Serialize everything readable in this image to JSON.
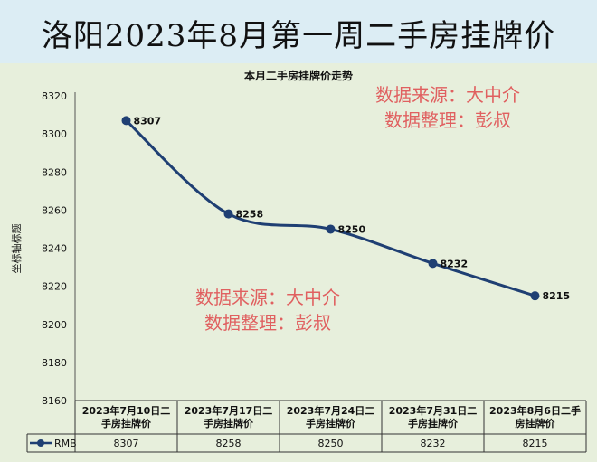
{
  "banner": {
    "title": "洛阳2023年8月第一周二手房挂牌价"
  },
  "chart_data": {
    "type": "line",
    "title": "本月二手房挂牌价走势",
    "ylabel": "坐标轴标题",
    "ylim": [
      8160,
      8320
    ],
    "yticks": [
      8160,
      8180,
      8200,
      8220,
      8240,
      8260,
      8280,
      8300,
      8320
    ],
    "categories": [
      [
        "2023年7月10日二",
        "手房挂牌价"
      ],
      [
        "2023年7月17日二",
        "手房挂牌价"
      ],
      [
        "2023年7月24日二",
        "手房挂牌价"
      ],
      [
        "2023年7月31日二",
        "手房挂牌价"
      ],
      [
        "2023年8月6日二手",
        "房挂牌价"
      ]
    ],
    "series": [
      {
        "name": "RMB",
        "values": [
          8307,
          8258,
          8250,
          8232,
          8215
        ],
        "color": "#1f3f73"
      }
    ],
    "table_visible": true,
    "watermarks": [
      {
        "line1": "数据来源：大中介",
        "line2": "数据整理：彭叔",
        "color": "#e06060"
      },
      {
        "line1": "数据来源：大中介",
        "line2": "数据整理：彭叔",
        "color": "#e06060"
      }
    ]
  }
}
